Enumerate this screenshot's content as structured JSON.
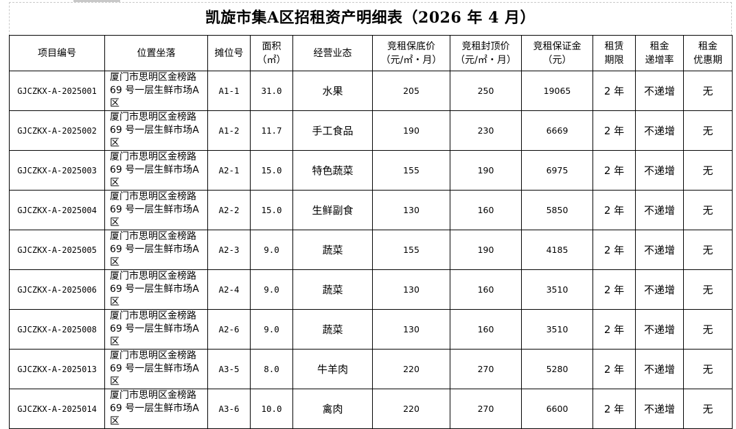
{
  "title": "凯旋市集A区招租资产明细表（2026 年 4 月）",
  "headers": [
    [
      "项目编号"
    ],
    [
      "位置坐落"
    ],
    [
      "摊位号"
    ],
    [
      "面积",
      "（㎡）"
    ],
    [
      "经营业态"
    ],
    [
      "竞租保底价",
      "（元/㎡・月）"
    ],
    [
      "竞租封顶价",
      "（元/㎡・月）"
    ],
    [
      "竞租保证金",
      "（元）"
    ],
    [
      "租赁",
      "期限"
    ],
    [
      "租金",
      "递增率"
    ],
    [
      "租金",
      "优惠期"
    ]
  ],
  "rows": [
    {
      "code": "GJCZKX-A-2025001",
      "loc1": "厦门市思明区金榜路",
      "loc2": "69 号一层生鲜市场A区",
      "stall": "A1-1",
      "area": "31.0",
      "type": "水果",
      "floor": "205",
      "cap": "250",
      "deposit": "19065",
      "term": "2 年",
      "increase": "不递增",
      "discount": "无"
    },
    {
      "code": "GJCZKX-A-2025002",
      "loc1": "厦门市思明区金榜路",
      "loc2": "69 号一层生鲜市场A区",
      "stall": "A1-2",
      "area": "11.7",
      "type": "手工食品",
      "floor": "190",
      "cap": "230",
      "deposit": "6669",
      "term": "2 年",
      "increase": "不递增",
      "discount": "无"
    },
    {
      "code": "GJCZKX-A-2025003",
      "loc1": "厦门市思明区金榜路",
      "loc2": "69 号一层生鲜市场A区",
      "stall": "A2-1",
      "area": "15.0",
      "type": "特色蔬菜",
      "floor": "155",
      "cap": "190",
      "deposit": "6975",
      "term": "2 年",
      "increase": "不递增",
      "discount": "无"
    },
    {
      "code": "GJCZKX-A-2025004",
      "loc1": "厦门市思明区金榜路",
      "loc2": "69 号一层生鲜市场A区",
      "stall": "A2-2",
      "area": "15.0",
      "type": "生鲜副食",
      "floor": "130",
      "cap": "160",
      "deposit": "5850",
      "term": "2 年",
      "increase": "不递增",
      "discount": "无"
    },
    {
      "code": "GJCZKX-A-2025005",
      "loc1": "厦门市思明区金榜路",
      "loc2": "69 号一层生鲜市场A区",
      "stall": "A2-3",
      "area": "9.0",
      "type": "蔬菜",
      "floor": "155",
      "cap": "190",
      "deposit": "4185",
      "term": "2 年",
      "increase": "不递增",
      "discount": "无"
    },
    {
      "code": "GJCZKX-A-2025006",
      "loc1": "厦门市思明区金榜路",
      "loc2": "69 号一层生鲜市场A区",
      "stall": "A2-4",
      "area": "9.0",
      "type": "蔬菜",
      "floor": "130",
      "cap": "160",
      "deposit": "3510",
      "term": "2 年",
      "increase": "不递增",
      "discount": "无"
    },
    {
      "code": "GJCZKX-A-2025008",
      "loc1": "厦门市思明区金榜路",
      "loc2": "69 号一层生鲜市场A区",
      "stall": "A2-6",
      "area": "9.0",
      "type": "蔬菜",
      "floor": "130",
      "cap": "160",
      "deposit": "3510",
      "term": "2 年",
      "increase": "不递增",
      "discount": "无"
    },
    {
      "code": "GJCZKX-A-2025013",
      "loc1": "厦门市思明区金榜路",
      "loc2": "69 号一层生鲜市场A区",
      "stall": "A3-5",
      "area": "8.0",
      "type": "牛羊肉",
      "floor": "220",
      "cap": "270",
      "deposit": "5280",
      "term": "2 年",
      "increase": "不递增",
      "discount": "无"
    },
    {
      "code": "GJCZKX-A-2025014",
      "loc1": "厦门市思明区金榜路",
      "loc2": "69 号一层生鲜市场A区",
      "stall": "A3-6",
      "area": "10.0",
      "type": "禽肉",
      "floor": "220",
      "cap": "270",
      "deposit": "6600",
      "term": "2 年",
      "increase": "不递增",
      "discount": "无"
    }
  ]
}
